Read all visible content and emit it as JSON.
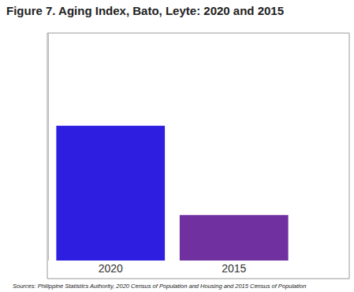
{
  "chart_data": {
    "type": "bar",
    "title": "Figure 7. Aging Index, Bato, Leyte: 2020 and 2015",
    "source": "Sources: Philippine Statistics Authority, 2020 Census of Population and Housing and 2015 Census of Population",
    "categories": [
      "2020",
      "2015"
    ],
    "values": [
      33.3,
      27.8
    ],
    "colors": [
      "#2e1fe0",
      "#7030a0"
    ],
    "ylim": [
      25,
      39
    ],
    "tick_labels": "x",
    "data_labels": true,
    "grid": false
  }
}
